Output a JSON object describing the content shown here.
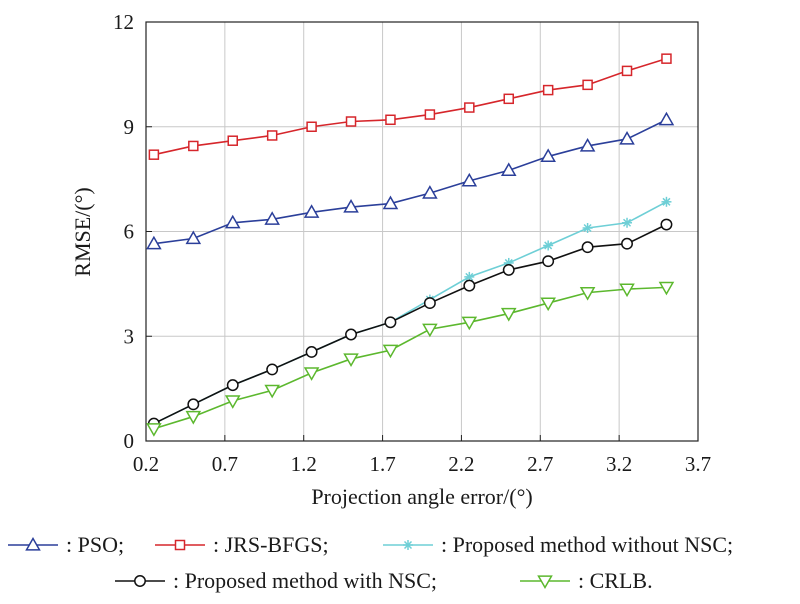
{
  "chart_data": {
    "type": "line",
    "title": "",
    "xlabel": "Projection angle error/(°)",
    "ylabel": "RMSE/(°)",
    "xlim": [
      0.2,
      3.7
    ],
    "ylim": [
      0,
      12
    ],
    "xticks": [
      "0.2",
      "0.7",
      "1.2",
      "1.7",
      "2.2",
      "2.7",
      "3.2",
      "3.7"
    ],
    "yticks": [
      "0",
      "3",
      "6",
      "9",
      "12"
    ],
    "grid": true,
    "legend_position": "bottom",
    "x": [
      0.25,
      0.5,
      0.75,
      1.0,
      1.25,
      1.5,
      1.75,
      2.0,
      2.25,
      2.5,
      2.75,
      3.0,
      3.25,
      3.5
    ],
    "series": [
      {
        "name": "PSO",
        "legend_label": ": PSO;",
        "marker": "triangle-up",
        "color": "#2b3f9a",
        "values": [
          5.65,
          5.8,
          6.25,
          6.35,
          6.55,
          6.7,
          6.8,
          7.1,
          7.45,
          7.75,
          8.15,
          8.45,
          8.65,
          9.2
        ]
      },
      {
        "name": "JRS-BFGS",
        "legend_label": ": JRS-BFGS;",
        "marker": "square",
        "color": "#d6262b",
        "values": [
          8.2,
          8.45,
          8.6,
          8.75,
          9.0,
          9.15,
          9.2,
          9.35,
          9.55,
          9.8,
          10.05,
          10.2,
          10.6,
          10.95
        ]
      },
      {
        "name": "Proposed method without NSC",
        "legend_label": ": Proposed method without NSC;",
        "marker": "asterisk",
        "color": "#6ecfd6",
        "values": [
          0.5,
          1.05,
          1.6,
          2.05,
          2.55,
          3.05,
          3.4,
          4.05,
          4.7,
          5.1,
          5.6,
          6.1,
          6.25,
          6.85
        ]
      },
      {
        "name": "Proposed method with NSC",
        "legend_label": ": Proposed method with NSC;",
        "marker": "circle",
        "color": "#111111",
        "values": [
          0.5,
          1.05,
          1.6,
          2.05,
          2.55,
          3.05,
          3.4,
          3.95,
          4.45,
          4.9,
          5.15,
          5.55,
          5.65,
          6.2
        ]
      },
      {
        "name": "CRLB",
        "legend_label": ": CRLB.",
        "marker": "triangle-down",
        "color": "#5cb82e",
        "values": [
          0.35,
          0.7,
          1.15,
          1.45,
          1.95,
          2.35,
          2.6,
          3.2,
          3.4,
          3.65,
          3.95,
          4.25,
          4.35,
          4.4
        ]
      }
    ]
  }
}
